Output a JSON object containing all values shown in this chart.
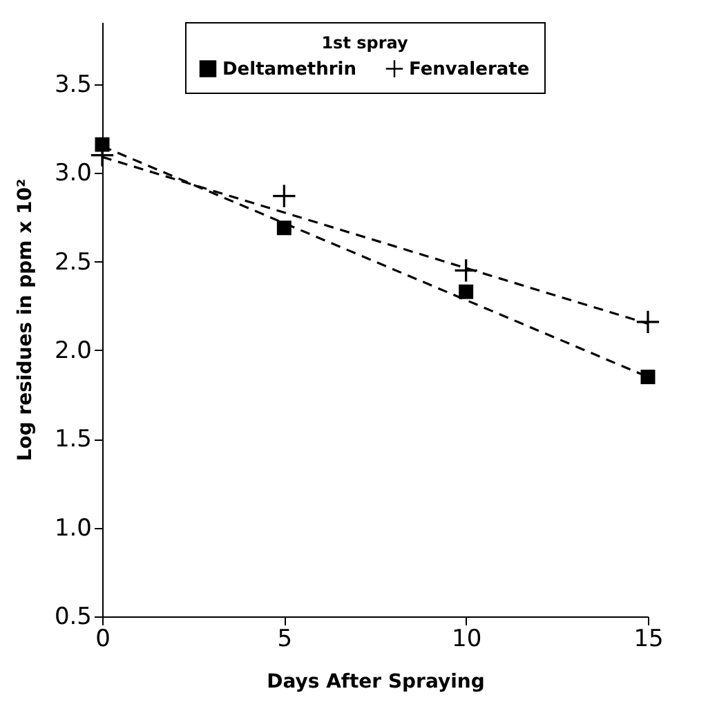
{
  "chart_data": {
    "type": "scatter",
    "xlabel": "Days    After    Spraying",
    "ylabel": "Log   residues in ppm x 10²",
    "legend_title": "1st spray",
    "legend": "top",
    "xlim": [
      0,
      15
    ],
    "ylim": [
      0.5,
      3.85
    ],
    "xticks": [
      0,
      5,
      10,
      15
    ],
    "yticks": [
      0.5,
      {
        "value": 1,
        "label": "1.0"
      },
      1.5,
      {
        "value": 2,
        "label": "2.0"
      },
      2.5,
      {
        "value": 3,
        "label": "3.0"
      },
      3.5
    ],
    "grid": false,
    "series": [
      {
        "name": "Deltamethrin",
        "marker": "square",
        "color": "#000000",
        "x": [
          0,
          5,
          10,
          15
        ],
        "values": [
          3.16,
          2.69,
          2.33,
          1.85
        ]
      },
      {
        "name": "Fenvalerate",
        "marker": "cross",
        "color": "#000000",
        "x": [
          0,
          5,
          10,
          15
        ],
        "values": [
          3.1,
          2.87,
          2.45,
          2.16
        ]
      },
      {
        "type": "line",
        "line_style": "dashed",
        "color": "#000000",
        "x": [
          0,
          15
        ],
        "values": [
          3.15,
          1.85
        ]
      },
      {
        "type": "line",
        "line_style": "dashed",
        "color": "#000000",
        "x": [
          0,
          15
        ],
        "values": [
          3.09,
          2.15
        ]
      }
    ]
  }
}
